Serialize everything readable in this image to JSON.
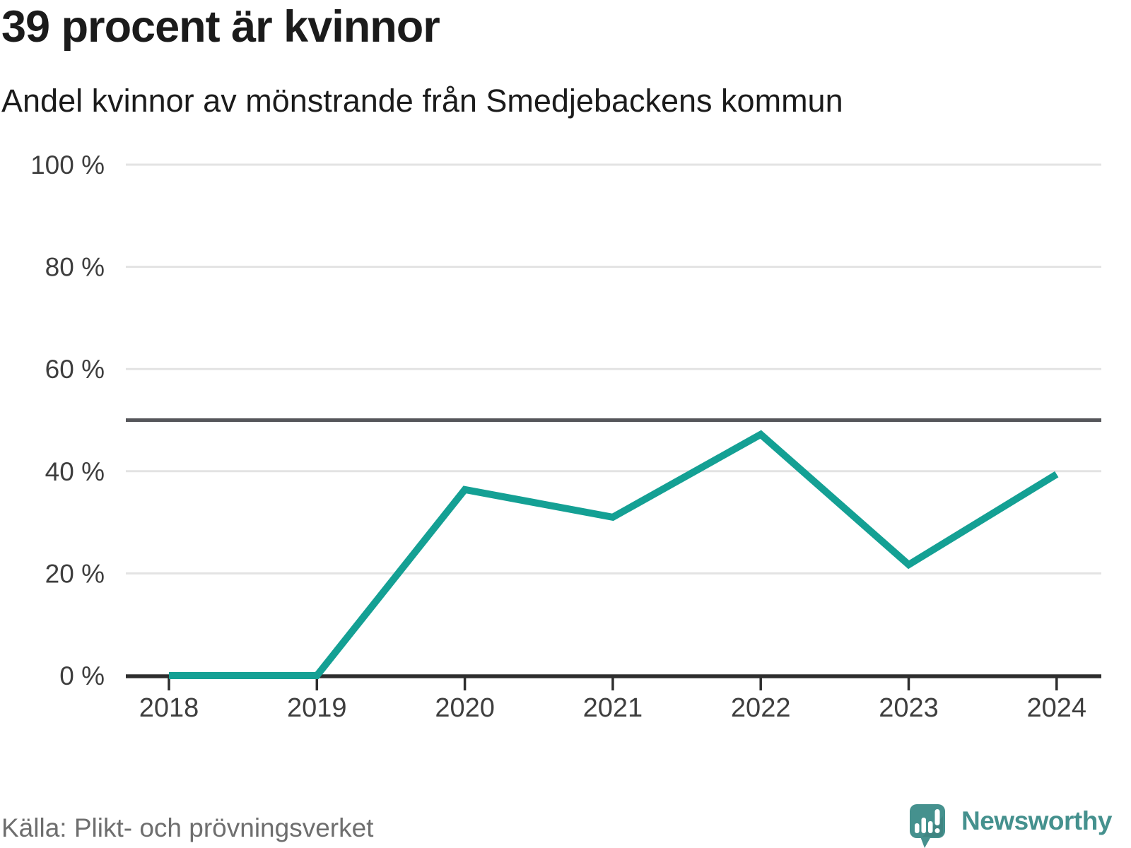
{
  "title": "39 procent är kvinnor",
  "subtitle": "Andel kvinnor av mönstrande från Smedjebackens kommun",
  "source": "Källa: Plikt- och prövningsverket",
  "logo": {
    "text": "Newsworthy",
    "icon": "speech-bubble-with-bar-chart-and-exclamation"
  },
  "colors": {
    "line": "#14a094",
    "reference_line": "#55565a",
    "grid": "#e3e3e3",
    "axis": "#2e2e2e",
    "tick_label": "#3e3e3e",
    "title_text": "#1b1b1b",
    "source_text": "#6e6e6e",
    "logo": "#45918e",
    "logo_shade": "rgba(0,0,0,0.08)",
    "logo_glyph": "#ffffff"
  },
  "chart_data": {
    "type": "line",
    "title": "39 procent är kvinnor",
    "subtitle": "Andel kvinnor av mönstrande från Smedjebackens kommun",
    "categories": [
      "2018",
      "2019",
      "2020",
      "2021",
      "2022",
      "2023",
      "2024"
    ],
    "values": [
      0,
      0,
      36.4,
      31,
      47.2,
      21.7,
      39.4
    ],
    "series_name": "Andel kvinnor av mönstrande",
    "unit": "%",
    "xlabel": "",
    "ylabel": "",
    "ylim": [
      0,
      100
    ],
    "y_ticks": [
      0,
      20,
      40,
      60,
      80,
      100
    ],
    "y_tick_labels": [
      "0 %",
      "20 %",
      "40 %",
      "60 %",
      "80 %",
      "100 %"
    ],
    "reference_line": 50,
    "grid": true,
    "legend": false,
    "source": "Källa: Plikt- och prövningsverket"
  }
}
